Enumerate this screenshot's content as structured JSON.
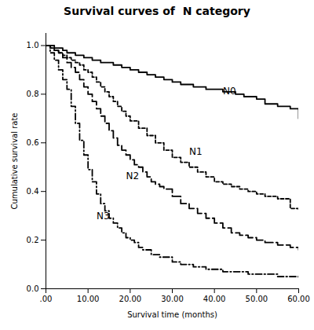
{
  "chart_data": {
    "type": "step",
    "title": "Survival curves of  N category",
    "xlabel": "Survival time (months)",
    "ylabel": "Cumulative survival rate",
    "xlim": [
      0,
      60
    ],
    "ylim": [
      0.0,
      1.05
    ],
    "xticks": [
      {
        "value": 0,
        "label": ".00"
      },
      {
        "value": 10,
        "label": "10.00"
      },
      {
        "value": 20,
        "label": "20.00"
      },
      {
        "value": 30,
        "label": "30.00"
      },
      {
        "value": 40,
        "label": "40.00"
      },
      {
        "value": 50,
        "label": "50.00"
      },
      {
        "value": 60,
        "label": "60.00"
      }
    ],
    "yticks": [
      {
        "value": 0,
        "label": "0.0"
      },
      0.2,
      0.4,
      0.6,
      0.8,
      {
        "value": 1,
        "label": "1.0"
      }
    ],
    "grid": false,
    "legend": false,
    "series": [
      {
        "name": "N0",
        "color": "black",
        "line_style": "solid",
        "x": [
          0,
          1,
          2,
          3,
          4,
          5,
          6,
          7,
          8,
          9,
          10,
          11,
          12,
          13,
          14,
          16,
          18,
          20,
          22,
          24,
          26,
          28,
          30,
          32,
          35,
          38,
          42,
          45,
          47,
          50,
          52,
          55,
          58,
          60
        ],
        "values": [
          1.0,
          1.0,
          0.99,
          0.99,
          0.98,
          0.97,
          0.97,
          0.96,
          0.96,
          0.95,
          0.95,
          0.94,
          0.94,
          0.93,
          0.93,
          0.92,
          0.91,
          0.9,
          0.89,
          0.88,
          0.87,
          0.86,
          0.85,
          0.84,
          0.83,
          0.82,
          0.81,
          0.8,
          0.79,
          0.78,
          0.76,
          0.75,
          0.74,
          0.7
        ]
      },
      {
        "name": "N1",
        "color": "black",
        "line_style": "dotted",
        "x": [
          0,
          1,
          2,
          3,
          4,
          5,
          6,
          7,
          8,
          9,
          10,
          11,
          12,
          13,
          14,
          15,
          16,
          17,
          18,
          19,
          20,
          22,
          24,
          26,
          28,
          30,
          32,
          34,
          36,
          38,
          40,
          42,
          44,
          46,
          48,
          50,
          52,
          55,
          58,
          60
        ],
        "values": [
          1.0,
          0.99,
          0.98,
          0.97,
          0.96,
          0.95,
          0.94,
          0.93,
          0.92,
          0.9,
          0.89,
          0.87,
          0.85,
          0.83,
          0.81,
          0.79,
          0.77,
          0.75,
          0.73,
          0.71,
          0.69,
          0.66,
          0.63,
          0.6,
          0.57,
          0.54,
          0.52,
          0.5,
          0.48,
          0.46,
          0.44,
          0.43,
          0.42,
          0.41,
          0.4,
          0.39,
          0.38,
          0.37,
          0.33,
          0.32
        ]
      },
      {
        "name": "N2",
        "color": "black",
        "line_style": "dashed",
        "x": [
          0,
          1,
          2,
          3,
          4,
          5,
          6,
          7,
          8,
          9,
          10,
          11,
          12,
          13,
          14,
          15,
          16,
          17,
          18,
          19,
          20,
          21,
          22,
          23,
          24,
          25,
          26,
          27,
          28,
          30,
          32,
          34,
          36,
          38,
          40,
          42,
          44,
          46,
          48,
          50,
          52,
          55,
          58,
          60
        ],
        "values": [
          1.0,
          0.99,
          0.98,
          0.97,
          0.95,
          0.93,
          0.91,
          0.89,
          0.86,
          0.83,
          0.8,
          0.77,
          0.74,
          0.71,
          0.68,
          0.65,
          0.62,
          0.59,
          0.57,
          0.55,
          0.53,
          0.51,
          0.5,
          0.48,
          0.46,
          0.44,
          0.43,
          0.42,
          0.41,
          0.38,
          0.35,
          0.33,
          0.31,
          0.29,
          0.27,
          0.25,
          0.23,
          0.22,
          0.21,
          0.2,
          0.19,
          0.18,
          0.17,
          0.16
        ]
      },
      {
        "name": "N3",
        "color": "black",
        "line_style": "dashdot",
        "x": [
          0,
          1,
          2,
          3,
          4,
          5,
          6,
          7,
          8,
          9,
          10,
          11,
          12,
          13,
          14,
          15,
          16,
          17,
          18,
          19,
          20,
          21,
          22,
          23,
          25,
          27,
          30,
          32,
          35,
          38,
          40,
          42,
          44,
          46,
          48,
          50,
          52,
          55,
          58,
          60
        ],
        "values": [
          1.0,
          0.97,
          0.94,
          0.9,
          0.86,
          0.82,
          0.75,
          0.68,
          0.61,
          0.55,
          0.49,
          0.44,
          0.39,
          0.35,
          0.32,
          0.29,
          0.27,
          0.25,
          0.23,
          0.21,
          0.2,
          0.19,
          0.17,
          0.16,
          0.14,
          0.13,
          0.11,
          0.1,
          0.09,
          0.08,
          0.08,
          0.07,
          0.07,
          0.07,
          0.06,
          0.06,
          0.06,
          0.05,
          0.05,
          0.04
        ]
      }
    ],
    "annotations": [
      {
        "text": "N0",
        "x": 42,
        "y": 0.8
      },
      {
        "text": "N1",
        "x": 34,
        "y": 0.55
      },
      {
        "text": "N2",
        "x": 19,
        "y": 0.45
      },
      {
        "text": "N3",
        "x": 12.0,
        "y": 0.285
      }
    ]
  }
}
